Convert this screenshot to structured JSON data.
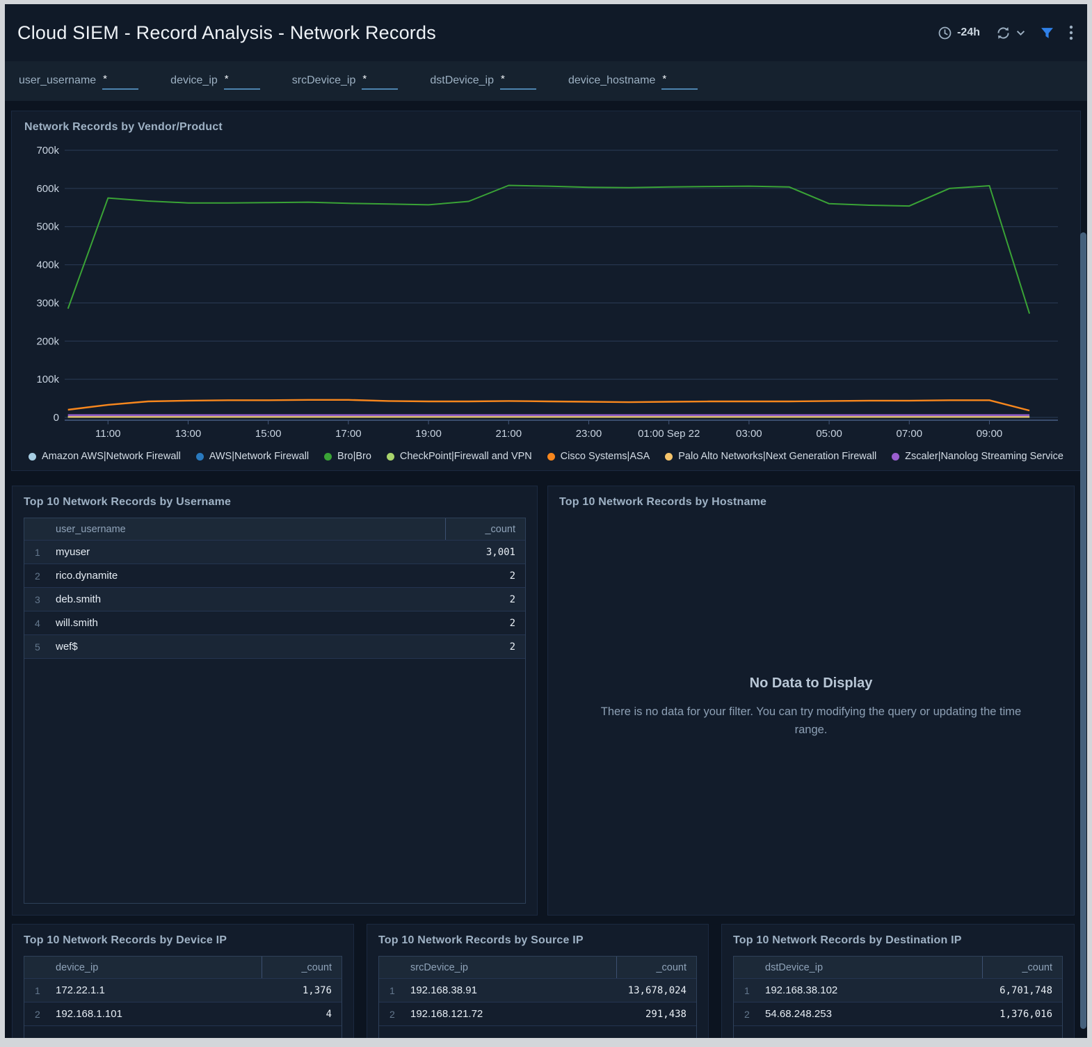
{
  "header": {
    "title": "Cloud SIEM - Record Analysis - Network Records",
    "time_range": "-24h"
  },
  "filters": [
    {
      "label": "user_username",
      "value": "*"
    },
    {
      "label": "device_ip",
      "value": "*"
    },
    {
      "label": "srcDevice_ip",
      "value": "*"
    },
    {
      "label": "dstDevice_ip",
      "value": "*"
    },
    {
      "label": "device_hostname",
      "value": "*"
    }
  ],
  "chart_data": {
    "type": "line",
    "title": "Network Records by Vendor/Product",
    "grid": true,
    "legend_position": "bottom",
    "ylim": [
      0,
      700000
    ],
    "y_ticks": [
      {
        "v": 0,
        "label": "0"
      },
      {
        "v": 100000,
        "label": "100k"
      },
      {
        "v": 200000,
        "label": "200k"
      },
      {
        "v": 300000,
        "label": "300k"
      },
      {
        "v": 400000,
        "label": "400k"
      },
      {
        "v": 500000,
        "label": "500k"
      },
      {
        "v": 600000,
        "label": "600k"
      },
      {
        "v": 700000,
        "label": "700k"
      }
    ],
    "x_range": [
      9.78,
      34.71
    ],
    "x": [
      10,
      11,
      12,
      13,
      14,
      15,
      16,
      17,
      18,
      19,
      20,
      21,
      22,
      23,
      24,
      25,
      26,
      27,
      28,
      29,
      30,
      31,
      32,
      33,
      34
    ],
    "x_ticks": [
      {
        "v": 11,
        "label": "11:00"
      },
      {
        "v": 13,
        "label": "13:00"
      },
      {
        "v": 15,
        "label": "15:00"
      },
      {
        "v": 17,
        "label": "17:00"
      },
      {
        "v": 19,
        "label": "19:00"
      },
      {
        "v": 21,
        "label": "21:00"
      },
      {
        "v": 23,
        "label": "23:00"
      },
      {
        "v": 25,
        "label": "01:00 Sep 22"
      },
      {
        "v": 27,
        "label": "03:00"
      },
      {
        "v": 29,
        "label": "05:00"
      },
      {
        "v": 31,
        "label": "07:00"
      },
      {
        "v": 33,
        "label": "09:00"
      }
    ],
    "series": [
      {
        "name": "Amazon AWS|Network Firewall",
        "color": "#a6cee3",
        "width": 2,
        "values": [
          1200,
          1200,
          1200,
          1200,
          1200,
          1200,
          1200,
          1200,
          1200,
          1200,
          1200,
          1200,
          1200,
          1200,
          1200,
          1200,
          1200,
          1200,
          1200,
          1200,
          1200,
          1200,
          1200,
          1200,
          1200
        ]
      },
      {
        "name": "AWS|Network Firewall",
        "color": "#2979be",
        "width": 2,
        "values": [
          1800,
          1800,
          1800,
          1800,
          1800,
          1800,
          1800,
          1800,
          1800,
          1800,
          1800,
          1800,
          1800,
          1800,
          1800,
          1800,
          1800,
          1800,
          1800,
          1800,
          1800,
          1800,
          1800,
          1800,
          1800
        ]
      },
      {
        "name": "Bro|Bro",
        "color": "#3aa336",
        "width": 2,
        "values": [
          285000,
          575000,
          567000,
          562000,
          562000,
          563000,
          564000,
          561000,
          559000,
          557000,
          566000,
          608000,
          606000,
          603000,
          602000,
          604000,
          605000,
          606000,
          604000,
          560000,
          556000,
          554000,
          600000,
          607000,
          272000
        ]
      },
      {
        "name": "CheckPoint|Firewall and VPN",
        "color": "#a9d46c",
        "width": 2,
        "values": [
          900,
          900,
          900,
          900,
          900,
          900,
          900,
          900,
          900,
          900,
          900,
          900,
          900,
          900,
          900,
          900,
          900,
          900,
          900,
          900,
          900,
          900,
          900,
          900,
          900
        ]
      },
      {
        "name": "Cisco Systems|ASA",
        "color": "#f8871d",
        "width": 2.4,
        "values": [
          20000,
          33000,
          42000,
          44000,
          45000,
          45000,
          46000,
          46000,
          43000,
          42000,
          42000,
          43000,
          42000,
          41000,
          40000,
          41000,
          42000,
          42000,
          42000,
          43000,
          44000,
          44000,
          45000,
          45000,
          18000
        ]
      },
      {
        "name": "Palo Alto Networks|Next Generation Firewall",
        "color": "#f6c46b",
        "width": 2,
        "values": [
          1500,
          1500,
          1500,
          1500,
          1500,
          1500,
          1500,
          1500,
          1500,
          1500,
          1500,
          1500,
          1500,
          1500,
          1500,
          1500,
          1500,
          1500,
          1500,
          1500,
          1500,
          1500,
          1500,
          1500,
          1500
        ]
      },
      {
        "name": "Zscaler|Nanolog Streaming Service",
        "color": "#9a5fd0",
        "width": 2.4,
        "values": [
          6000,
          6000,
          6000,
          6000,
          6000,
          6000,
          6000,
          6000,
          6000,
          6000,
          6000,
          6000,
          6000,
          6000,
          6000,
          6000,
          6000,
          6000,
          6000,
          6000,
          6000,
          6000,
          6000,
          6000,
          6000
        ]
      }
    ]
  },
  "tables": {
    "username": {
      "title": "Top 10 Network Records by Username",
      "columns": [
        "user_username",
        "_count"
      ],
      "rows": [
        [
          "myuser",
          "3,001"
        ],
        [
          "rico.dynamite",
          "2"
        ],
        [
          "deb.smith",
          "2"
        ],
        [
          "will.smith",
          "2"
        ],
        [
          "wef$",
          "2"
        ]
      ]
    },
    "device_ip": {
      "title": "Top 10 Network Records by Device IP",
      "columns": [
        "device_ip",
        "_count"
      ],
      "rows": [
        [
          "172.22.1.1",
          "1,376"
        ],
        [
          "192.168.1.101",
          "4"
        ]
      ]
    },
    "source_ip": {
      "title": "Top 10 Network Records by Source IP",
      "columns": [
        "srcDevice_ip",
        "_count"
      ],
      "rows": [
        [
          "192.168.38.91",
          "13,678,024"
        ],
        [
          "192.168.121.72",
          "291,438"
        ]
      ]
    },
    "destination_ip": {
      "title": "Top 10 Network Records by Destination IP",
      "columns": [
        "dstDevice_ip",
        "_count"
      ],
      "rows": [
        [
          "192.168.38.102",
          "6,701,748"
        ],
        [
          "54.68.248.253",
          "1,376,016"
        ]
      ]
    }
  },
  "hostname_panel": {
    "title": "Top 10 Network Records by Hostname",
    "no_data_heading": "No Data to Display",
    "no_data_message": "There is no data for your filter. You can try modifying the query or updating the time range."
  }
}
